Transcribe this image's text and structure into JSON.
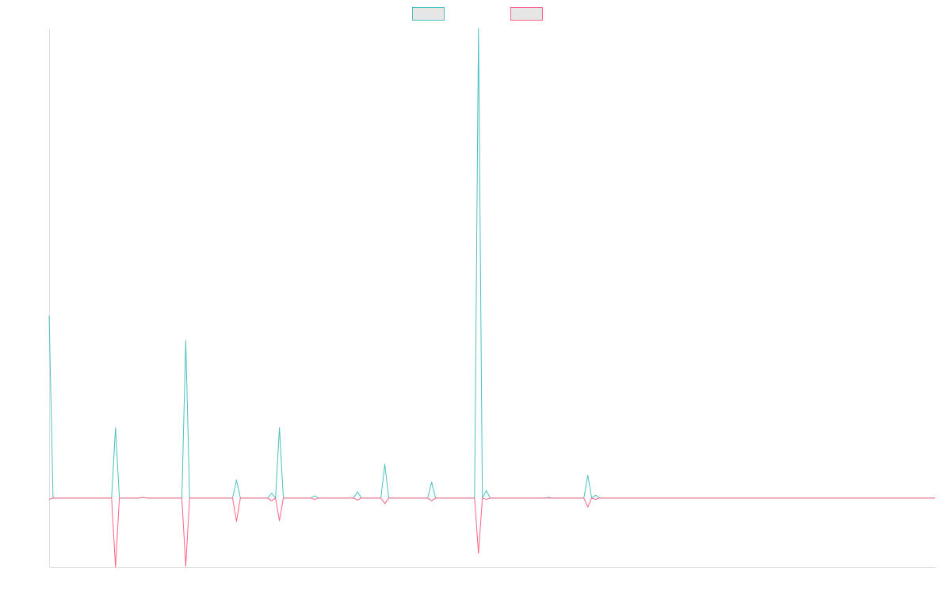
{
  "chart_data": {
    "type": "line",
    "title": "",
    "xlabel": "",
    "ylabel": "",
    "grid": false,
    "legend_position": "top-center",
    "x": [
      1,
      2,
      3,
      4,
      5,
      6,
      7,
      8,
      9,
      10,
      11,
      12,
      13,
      14,
      15,
      16,
      17,
      18,
      19,
      20,
      21,
      22,
      23,
      24,
      25,
      26,
      27,
      28,
      29,
      30,
      31,
      32,
      33,
      34,
      35,
      36,
      37,
      38,
      39,
      40,
      41,
      42,
      43,
      44,
      45,
      46,
      47,
      48,
      49,
      50,
      51,
      52,
      53,
      54,
      55,
      56,
      57,
      58,
      59,
      60,
      61,
      62,
      63,
      64,
      65,
      66,
      67,
      68,
      69,
      70,
      71,
      72,
      73,
      74,
      75,
      76,
      77,
      78,
      79,
      80,
      81,
      82,
      83,
      84,
      85,
      86,
      87,
      88,
      89,
      90,
      91,
      92,
      93,
      94,
      95,
      96,
      97,
      98,
      99,
      100,
      101,
      102,
      103,
      104,
      105,
      106,
      107,
      108,
      109,
      110,
      111,
      112,
      113,
      114,
      115,
      116,
      117,
      118,
      119,
      120,
      121,
      122,
      123,
      124,
      125,
      126,
      127,
      128,
      129,
      130,
      131,
      132,
      133,
      134,
      135,
      136,
      137,
      138,
      139,
      140,
      141,
      142,
      143,
      144,
      145,
      146,
      147,
      148,
      149,
      150,
      151,
      152,
      153,
      154,
      155,
      156,
      157,
      158,
      159,
      160,
      161,
      162,
      163,
      164,
      165,
      166,
      167,
      168,
      169,
      170,
      171,
      172,
      173,
      174,
      175,
      176,
      177,
      178,
      179,
      180,
      181,
      182,
      183,
      184,
      185,
      186,
      187,
      188,
      189,
      190,
      191,
      192,
      193,
      194,
      195,
      196,
      197,
      198,
      199,
      200,
      201,
      202,
      203,
      204,
      205,
      206,
      207,
      208,
      209,
      210,
      211,
      212,
      213,
      214,
      215,
      216,
      217,
      218,
      219,
      220,
      221,
      222,
      223,
      224,
      225,
      226,
      227,
      228
    ],
    "xlim": [
      1,
      228
    ],
    "ylim": [
      -100,
      680
    ],
    "series": [
      {
        "name": "",
        "color": "#4bc0c0",
        "points": [
          [
            1,
            264
          ],
          [
            2,
            0
          ],
          [
            17,
            0
          ],
          [
            18,
            102
          ],
          [
            19,
            0
          ],
          [
            24,
            0
          ],
          [
            25,
            1
          ],
          [
            26,
            0
          ],
          [
            35,
            0
          ],
          [
            36,
            228
          ],
          [
            37,
            0
          ],
          [
            48,
            0
          ],
          [
            49,
            26
          ],
          [
            50,
            0
          ],
          [
            57,
            0
          ],
          [
            58,
            7
          ],
          [
            59,
            0
          ],
          [
            60,
            102
          ],
          [
            61,
            0
          ],
          [
            68,
            0
          ],
          [
            69,
            3
          ],
          [
            70,
            0
          ],
          [
            79,
            0
          ],
          [
            80,
            9
          ],
          [
            81,
            0
          ],
          [
            86,
            0
          ],
          [
            87,
            49
          ],
          [
            88,
            0
          ],
          [
            98,
            0
          ],
          [
            99,
            23
          ],
          [
            100,
            0
          ],
          [
            110,
            0
          ],
          [
            111,
            680
          ],
          [
            112,
            0
          ],
          [
            113,
            11
          ],
          [
            114,
            0
          ],
          [
            128,
            0
          ],
          [
            129,
            1
          ],
          [
            130,
            0
          ],
          [
            138,
            0
          ],
          [
            139,
            33
          ],
          [
            140,
            0
          ],
          [
            141,
            4
          ],
          [
            142,
            0
          ],
          [
            228,
            0
          ]
        ]
      },
      {
        "name": "",
        "color": "#ff6384",
        "points": [
          [
            1,
            -2
          ],
          [
            2,
            0
          ],
          [
            17,
            0
          ],
          [
            18,
            -100
          ],
          [
            19,
            0
          ],
          [
            24,
            0
          ],
          [
            25,
            1
          ],
          [
            26,
            0
          ],
          [
            35,
            0
          ],
          [
            36,
            -99
          ],
          [
            37,
            0
          ],
          [
            48,
            0
          ],
          [
            49,
            -34
          ],
          [
            50,
            0
          ],
          [
            57,
            0
          ],
          [
            58,
            -4
          ],
          [
            59,
            0
          ],
          [
            60,
            -33
          ],
          [
            61,
            0
          ],
          [
            68,
            0
          ],
          [
            69,
            -2
          ],
          [
            70,
            0
          ],
          [
            79,
            0
          ],
          [
            80,
            -3
          ],
          [
            81,
            0
          ],
          [
            86,
            0
          ],
          [
            87,
            -8
          ],
          [
            88,
            0
          ],
          [
            98,
            0
          ],
          [
            99,
            -4
          ],
          [
            100,
            0
          ],
          [
            110,
            0
          ],
          [
            111,
            -80
          ],
          [
            112,
            0
          ],
          [
            113,
            -2
          ],
          [
            114,
            0
          ],
          [
            128,
            0
          ],
          [
            129,
            0
          ],
          [
            130,
            0
          ],
          [
            138,
            0
          ],
          [
            139,
            -13
          ],
          [
            140,
            0
          ],
          [
            141,
            -2
          ],
          [
            142,
            0
          ],
          [
            228,
            0
          ]
        ]
      }
    ]
  }
}
